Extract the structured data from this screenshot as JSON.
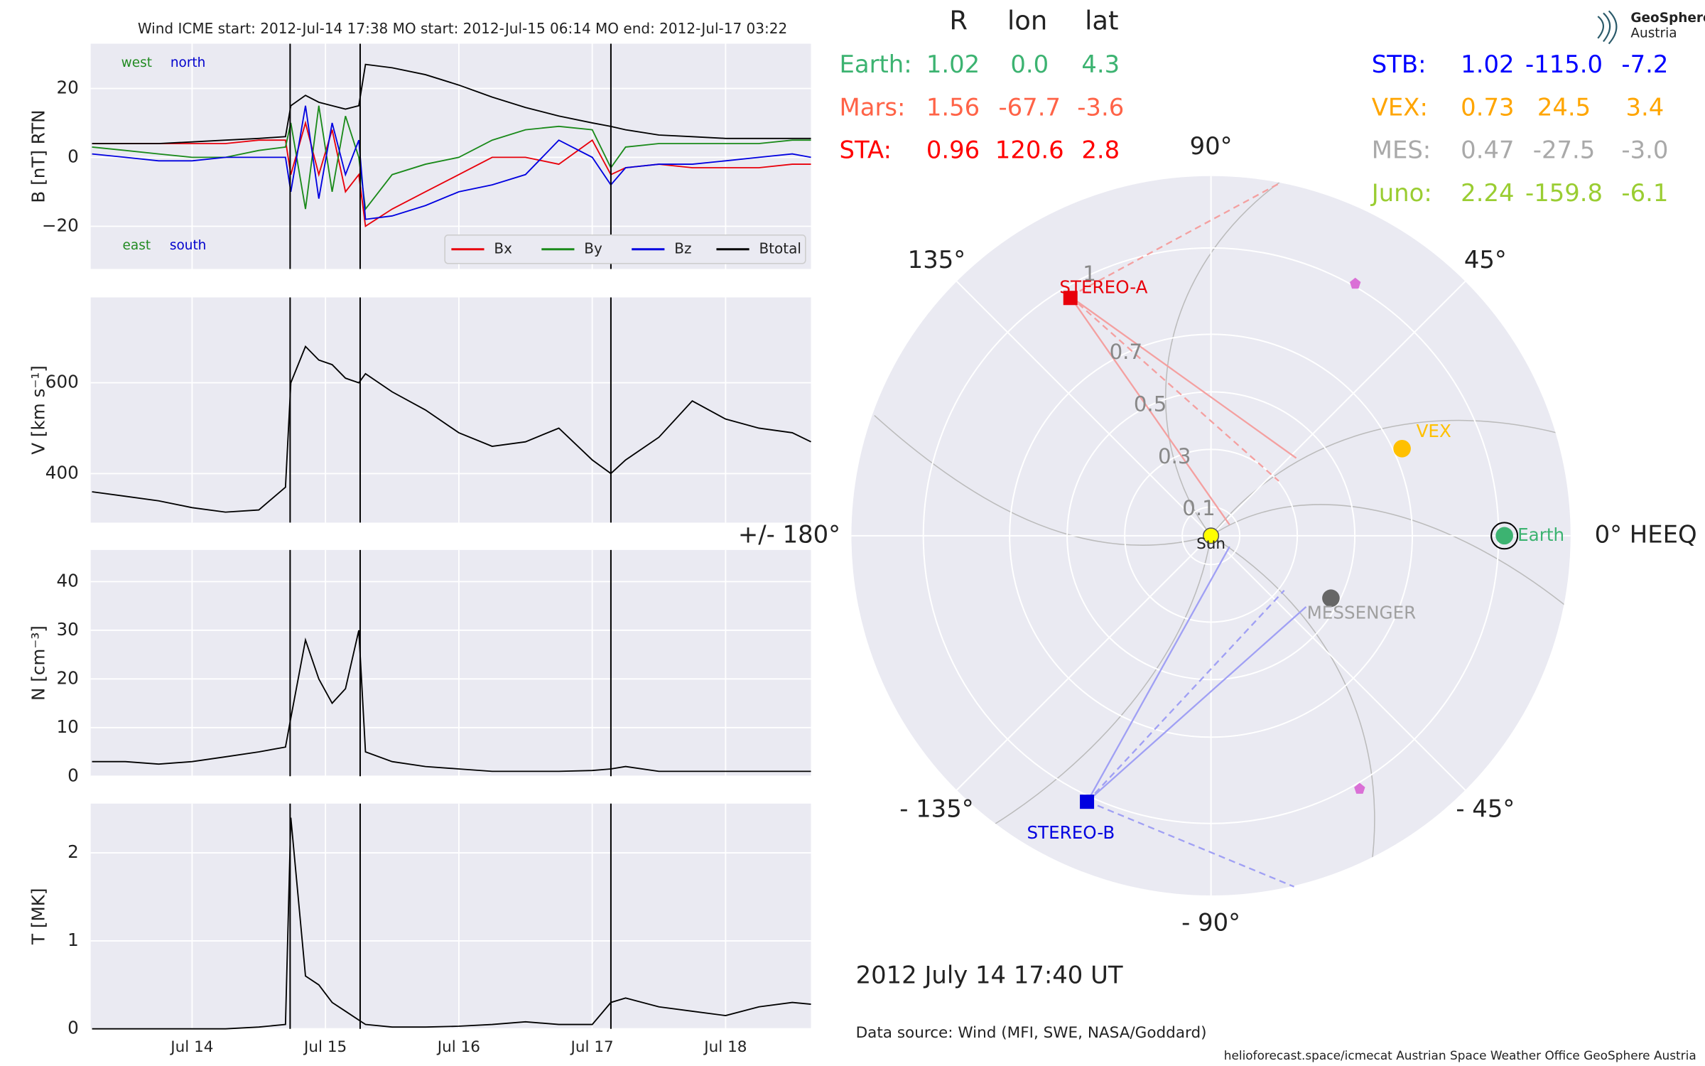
{
  "chart_data": [
    {
      "type": "line",
      "title": "Wind    ICME start: 2012-Jul-14 17:38   MO start: 2012-Jul-15 06:14   MO end: 2012-Jul-17 03:22",
      "ylabel": "B [nT] RTN",
      "x": [
        13.25,
        13.5,
        13.75,
        14,
        14.25,
        14.5,
        14.7,
        14.74,
        14.85,
        14.95,
        15.05,
        15.15,
        15.25,
        15.3,
        15.5,
        15.75,
        16,
        16.25,
        16.5,
        16.75,
        17,
        17.14,
        17.25,
        17.5,
        17.75,
        18,
        18.25,
        18.5,
        18.64
      ],
      "xlim": [
        13.24,
        18.64
      ],
      "ylim": [
        -32.4,
        33
      ],
      "yticks": [
        {
          "value": -20,
          "label": "−20"
        },
        0,
        20
      ],
      "grid": true,
      "event_lines": [
        14.735,
        15.26,
        17.14
      ],
      "annotations": [
        {
          "text": "west",
          "color": "#228b22"
        },
        {
          "text": "north",
          "color": "#0000cd"
        },
        {
          "text": "east",
          "color": "#228b22"
        },
        {
          "text": "south",
          "color": "#0000cd"
        }
      ],
      "legend": "lower right",
      "series": [
        {
          "name": "Bx",
          "color": "#e8000b",
          "values": [
            4,
            4,
            4,
            4,
            4,
            5,
            5,
            -5,
            10,
            -5,
            8,
            -10,
            -5,
            -20,
            -15,
            -10,
            -5,
            0,
            0,
            -2,
            5,
            -5,
            -3,
            -2,
            -3,
            -3,
            -3,
            -2,
            -2
          ]
        },
        {
          "name": "By",
          "color": "#1a8a1a",
          "values": [
            3,
            2,
            1,
            0,
            0,
            2,
            3,
            10,
            -15,
            15,
            -10,
            12,
            0,
            -15,
            -5,
            -2,
            0,
            5,
            8,
            9,
            8,
            -3,
            3,
            4,
            4,
            4,
            4,
            5,
            5
          ]
        },
        {
          "name": "Bz",
          "color": "#0000e0",
          "values": [
            1,
            0,
            -1,
            -1,
            0,
            0,
            0,
            -10,
            15,
            -12,
            10,
            -5,
            5,
            -18,
            -17,
            -14,
            -10,
            -8,
            -5,
            5,
            0,
            -8,
            -3,
            -2,
            -2,
            -1,
            0,
            1,
            0
          ]
        },
        {
          "name": "Btotal",
          "color": "#000000",
          "values": [
            4,
            4,
            4,
            4.5,
            5,
            5.5,
            6,
            15,
            18,
            16,
            15,
            14,
            15,
            27,
            26,
            24,
            21,
            17.5,
            14.5,
            12,
            10,
            9,
            8,
            6.5,
            6,
            5.5,
            5.5,
            5.5,
            5.5
          ]
        }
      ]
    },
    {
      "type": "line",
      "ylabel": "V [km s⁻¹]",
      "x": [
        13.25,
        13.5,
        13.75,
        14,
        14.25,
        14.5,
        14.7,
        14.74,
        14.85,
        14.95,
        15.05,
        15.15,
        15.25,
        15.3,
        15.5,
        15.75,
        16,
        16.25,
        16.5,
        16.75,
        17,
        17.14,
        17.25,
        17.5,
        17.75,
        18,
        18.25,
        18.5,
        18.64
      ],
      "xlim": [
        13.24,
        18.64
      ],
      "ylim": [
        292,
        788
      ],
      "yticks": [
        400,
        600
      ],
      "grid": true,
      "event_lines": [
        14.735,
        15.26,
        17.14
      ],
      "series": [
        {
          "color": "#000000",
          "values": [
            360,
            350,
            340,
            325,
            315,
            320,
            370,
            600,
            680,
            650,
            640,
            610,
            600,
            620,
            580,
            540,
            490,
            460,
            470,
            500,
            430,
            400,
            430,
            480,
            560,
            520,
            500,
            490,
            470
          ]
        }
      ]
    },
    {
      "type": "line",
      "ylabel": "N [cm⁻³]",
      "x": [
        13.25,
        13.5,
        13.75,
        14,
        14.25,
        14.5,
        14.7,
        14.74,
        14.85,
        14.95,
        15.05,
        15.15,
        15.25,
        15.3,
        15.5,
        15.75,
        16,
        16.25,
        16.5,
        16.75,
        17,
        17.14,
        17.25,
        17.5,
        17.75,
        18,
        18.25,
        18.5,
        18.64
      ],
      "xlim": [
        13.24,
        18.64
      ],
      "ylim": [
        0,
        46.5
      ],
      "yticks": [
        0,
        10,
        20,
        30,
        40
      ],
      "grid": true,
      "event_lines": [
        14.735,
        15.26,
        17.14
      ],
      "series": [
        {
          "color": "#000000",
          "values": [
            3,
            3,
            2.5,
            3,
            4,
            5,
            6,
            12,
            28,
            20,
            15,
            18,
            30,
            5,
            3,
            2,
            1.5,
            1,
            1,
            1,
            1.2,
            1.5,
            2,
            1,
            1,
            1,
            1,
            1,
            1
          ]
        }
      ]
    },
    {
      "type": "line",
      "ylabel": "T [MK]",
      "x": [
        13.25,
        13.5,
        13.75,
        14,
        14.25,
        14.5,
        14.7,
        14.74,
        14.85,
        14.95,
        15.05,
        15.15,
        15.25,
        15.3,
        15.5,
        15.75,
        16,
        16.25,
        16.5,
        16.75,
        17,
        17.14,
        17.25,
        17.5,
        17.75,
        18,
        18.25,
        18.5,
        18.64
      ],
      "xlim": [
        13.24,
        18.64
      ],
      "ylim": [
        0,
        2.56
      ],
      "yticks": [
        0,
        1,
        2
      ],
      "grid": true,
      "xticks": [
        {
          "value": 14,
          "label": "Jul 14"
        },
        {
          "value": 15,
          "label": "Jul 15"
        },
        {
          "value": 16,
          "label": "Jul 16"
        },
        {
          "value": 17,
          "label": "Jul 17"
        },
        {
          "value": 18,
          "label": "Jul 18"
        }
      ],
      "event_lines": [
        14.735,
        15.26,
        17.14
      ],
      "series": [
        {
          "color": "#000000",
          "values": [
            0,
            0,
            0,
            0,
            0,
            0.02,
            0.05,
            2.4,
            0.6,
            0.5,
            0.3,
            0.2,
            0.1,
            0.05,
            0.02,
            0.02,
            0.03,
            0.05,
            0.08,
            0.05,
            0.05,
            0.3,
            0.35,
            0.25,
            0.2,
            0.15,
            0.25,
            0.3,
            0.28
          ]
        }
      ]
    },
    {
      "type": "polar",
      "rlim": [
        0,
        1.25
      ],
      "rticks": [
        0.1,
        0.3,
        0.5,
        0.7,
        1
      ],
      "thetaticks": [
        {
          "value": 0,
          "label": "0° HEEQ"
        },
        {
          "value": 45,
          "label": "45°"
        },
        {
          "value": 90,
          "label": "90°"
        },
        {
          "value": 135,
          "label": "135°"
        },
        {
          "value": 180,
          "label": "+/- 180°"
        },
        {
          "value": -135,
          "label": "- 135°"
        },
        {
          "value": -90,
          "label": "- 90°"
        },
        {
          "value": -45,
          "label": "- 45°"
        }
      ],
      "sun_label": "Sun",
      "bodies": [
        {
          "name": "Earth",
          "r": 1.02,
          "lon": 0,
          "color": "#3cb371",
          "marker": "circle",
          "ring": true
        },
        {
          "name": "VEX",
          "r": 0.73,
          "lon": 24.5,
          "color": "#ffc000",
          "marker": "circle"
        },
        {
          "name": "MESSENGER",
          "r": 0.47,
          "lon": -27.5,
          "color": "#666666",
          "label_color": "#a0a0a0",
          "marker": "circle"
        },
        {
          "name": "STEREO-A",
          "r": 0.96,
          "lon": 120.6,
          "color": "#e8000b",
          "marker": "square"
        },
        {
          "name": "STEREO-B",
          "r": 1.02,
          "lon": -115,
          "color": "#0000e0",
          "marker": "square"
        }
      ]
    }
  ],
  "table": {
    "header": [
      "R",
      "lon",
      "lat"
    ],
    "rows": [
      {
        "name": "Earth:",
        "color": "#3cb371",
        "cells": [
          1.02,
          {
            "value": 0,
            "label": "0.0"
          },
          4.3
        ]
      },
      {
        "name": "Mars:",
        "color": "#ff6347",
        "cells": [
          1.56,
          -67.7,
          -3.6
        ]
      },
      {
        "name": "STA:",
        "color": "#ff0000",
        "cells": [
          0.96,
          120.6,
          2.8
        ]
      },
      {
        "name": "STB:",
        "color": "#0000ff",
        "cells": [
          1.02,
          {
            "value": -115,
            "label": "-115.0"
          },
          -7.2
        ]
      },
      {
        "name": "VEX:",
        "color": "#ffa500",
        "cells": [
          0.73,
          24.5,
          3.4
        ]
      },
      {
        "name": "MES:",
        "color": "#a9a9a9",
        "cells": [
          0.47,
          -27.5,
          {
            "value": -3,
            "label": "-3.0"
          }
        ]
      },
      {
        "name": "Juno:",
        "color": "#9acd32",
        "cells": [
          2.24,
          -159.8,
          -6.1
        ]
      }
    ]
  },
  "timestamp": "2012 July 14  17:40 UT",
  "source": "Data source: Wind (MFI, SWE, NASA/Goddard)",
  "footer": "helioforecast.space/icmecat   Austrian Space Weather Office   GeoSphere Austria",
  "logo": [
    "GeoSphere",
    "Austria"
  ]
}
